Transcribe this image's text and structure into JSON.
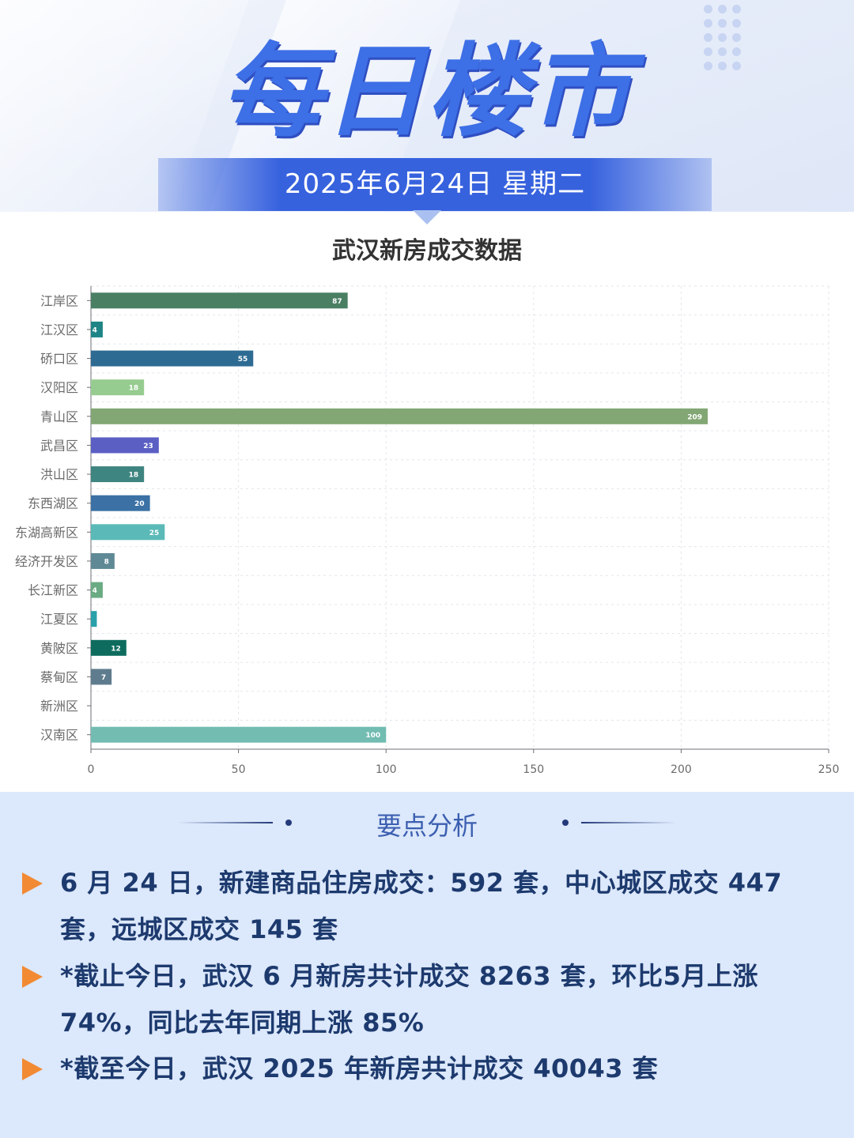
{
  "header": {
    "title": "每日楼市",
    "date": "2025年6月24日 星期二"
  },
  "colors": {
    "title_blue": "#3d6fe6",
    "band_blue": "#3762de",
    "analysis_bg": "#dce8fb",
    "bullet_orange": "#f28a33",
    "bullet_text": "#1d3a6e"
  },
  "chart_data": {
    "type": "bar",
    "orientation": "horizontal",
    "title": "武汉新房成交数据",
    "categories": [
      "江岸区",
      "江汉区",
      "硚口区",
      "汉阳区",
      "青山区",
      "武昌区",
      "洪山区",
      "东西湖区",
      "东湖高新区",
      "经济开发区",
      "长江新区",
      "江夏区",
      "黄陂区",
      "蔡甸区",
      "新洲区",
      "汉南区"
    ],
    "values": [
      87,
      4,
      55,
      18,
      209,
      23,
      18,
      20,
      25,
      8,
      4,
      2,
      12,
      7,
      0,
      100
    ],
    "value_labels": [
      "87",
      "4",
      "55",
      "18",
      "209",
      "23",
      "18",
      "20",
      "25",
      "8",
      "4",
      "",
      "12",
      "7",
      "",
      "100"
    ],
    "bar_colors": [
      "#4a7f63",
      "#1f8486",
      "#2e6b93",
      "#96cc8f",
      "#82a774",
      "#5b5fc4",
      "#3e8480",
      "#3b71a4",
      "#5bbab7",
      "#5f8995",
      "#6aab84",
      "#2aa0aa",
      "#0d6c5e",
      "#5e7c8d",
      "#9ac0c4",
      "#72bcb2"
    ],
    "xlim": [
      0,
      250
    ],
    "xticks": [
      "0",
      "50",
      "100",
      "150",
      "200",
      "250"
    ],
    "grid": true,
    "legend": "none"
  },
  "analysis": {
    "heading": "要点分析",
    "bullets": [
      "6 月 24 日，新建商品住房成交：592 套，中心城区成交 447 套，远城区成交 145 套",
      "*截止今日，武汉 6 月新房共计成交 8263 套，环比5月上涨 74%，同比去年同期上涨 85%",
      "*截至今日，武汉 2025 年新房共计成交 40043 套"
    ]
  }
}
